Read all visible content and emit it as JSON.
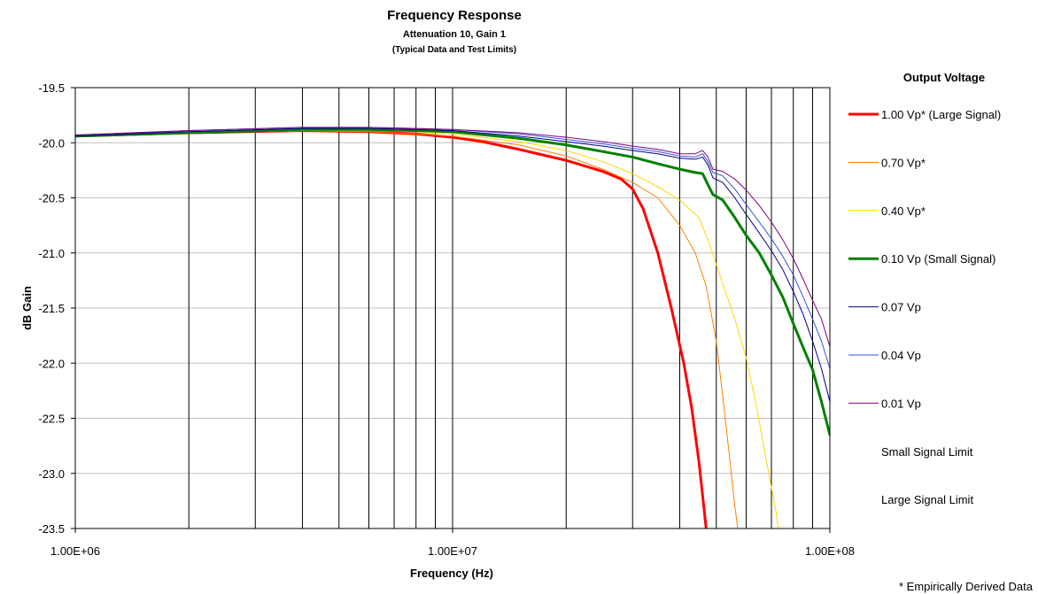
{
  "chart_data": {
    "type": "line",
    "title": "Frequency Response",
    "subtitle": "Attenuation 10, Gain 1",
    "subtitle2": "(Typical Data and Test Limits)",
    "xlabel": "Frequency (Hz)",
    "ylabel": "dB Gain",
    "x_scale": "log",
    "xlim": [
      1000000,
      100000000
    ],
    "ylim": [
      -23.5,
      -19.5
    ],
    "x_ticks": [
      {
        "value": 1000000,
        "label": "1.00E+06"
      },
      {
        "value": 10000000,
        "label": "1.00E+07"
      },
      {
        "value": 100000000,
        "label": "1.00E+08"
      }
    ],
    "y_ticks": [
      {
        "value": -19.5,
        "label": "-19.5"
      },
      {
        "value": -20.0,
        "label": "-20.0"
      },
      {
        "value": -20.5,
        "label": "-20.5"
      },
      {
        "value": -21.0,
        "label": "-21.0"
      },
      {
        "value": -21.5,
        "label": "-21.5"
      },
      {
        "value": -22.0,
        "label": "-22.0"
      },
      {
        "value": -22.5,
        "label": "-22.5"
      },
      {
        "value": -23.0,
        "label": "-23.0"
      },
      {
        "value": -23.5,
        "label": "-23.5"
      }
    ],
    "grid": {
      "x_minor_log": true,
      "y_major": true
    },
    "legend_title": "Output Voltage",
    "legend_position": "right",
    "footnote": "* Empirically Derived Data",
    "series": [
      {
        "name": "1.00 Vp* (Large Signal)",
        "color": "#ff0000",
        "width": 3,
        "points": [
          [
            1000000,
            -19.94
          ],
          [
            2000000,
            -19.91
          ],
          [
            4000000,
            -19.89
          ],
          [
            6000000,
            -19.9
          ],
          [
            8000000,
            -19.92
          ],
          [
            10000000,
            -19.95
          ],
          [
            12000000,
            -19.99
          ],
          [
            15000000,
            -20.06
          ],
          [
            20000000,
            -20.16
          ],
          [
            25000000,
            -20.26
          ],
          [
            28000000,
            -20.33
          ],
          [
            30000000,
            -20.42
          ],
          [
            32000000,
            -20.6
          ],
          [
            35000000,
            -21.0
          ],
          [
            38000000,
            -21.5
          ],
          [
            41000000,
            -22.0
          ],
          [
            43000000,
            -22.4
          ],
          [
            45000000,
            -22.9
          ],
          [
            47000000,
            -23.5
          ]
        ]
      },
      {
        "name": "0.70 Vp*",
        "color": "#ff8000",
        "width": 1,
        "points": [
          [
            1000000,
            -19.94
          ],
          [
            2000000,
            -19.91
          ],
          [
            4000000,
            -19.89
          ],
          [
            6000000,
            -19.9
          ],
          [
            8000000,
            -19.92
          ],
          [
            10000000,
            -19.94
          ],
          [
            15000000,
            -20.02
          ],
          [
            20000000,
            -20.12
          ],
          [
            25000000,
            -20.24
          ],
          [
            30000000,
            -20.36
          ],
          [
            35000000,
            -20.5
          ],
          [
            40000000,
            -20.75
          ],
          [
            44000000,
            -21.0
          ],
          [
            47000000,
            -21.3
          ],
          [
            50000000,
            -21.8
          ],
          [
            52000000,
            -22.3
          ],
          [
            54000000,
            -22.8
          ],
          [
            56000000,
            -23.3
          ],
          [
            57000000,
            -23.5
          ]
        ]
      },
      {
        "name": "0.40 Vp*",
        "color": "#ffd700",
        "width": 1,
        "points": [
          [
            1000000,
            -19.94
          ],
          [
            2000000,
            -19.91
          ],
          [
            4000000,
            -19.89
          ],
          [
            6000000,
            -19.89
          ],
          [
            8000000,
            -19.9
          ],
          [
            10000000,
            -19.92
          ],
          [
            15000000,
            -19.99
          ],
          [
            20000000,
            -20.07
          ],
          [
            25000000,
            -20.17
          ],
          [
            30000000,
            -20.28
          ],
          [
            35000000,
            -20.4
          ],
          [
            40000000,
            -20.52
          ],
          [
            45000000,
            -20.68
          ],
          [
            48000000,
            -20.92
          ],
          [
            52000000,
            -21.28
          ],
          [
            56000000,
            -21.6
          ],
          [
            60000000,
            -21.95
          ],
          [
            64000000,
            -22.4
          ],
          [
            68000000,
            -22.9
          ],
          [
            72000000,
            -23.35
          ],
          [
            73000000,
            -23.5
          ]
        ]
      },
      {
        "name": "0.10 Vp (Small Signal)",
        "color": "#008000",
        "width": 3,
        "points": [
          [
            1000000,
            -19.94
          ],
          [
            2000000,
            -19.91
          ],
          [
            4000000,
            -19.88
          ],
          [
            6000000,
            -19.88
          ],
          [
            8000000,
            -19.89
          ],
          [
            10000000,
            -19.9
          ],
          [
            15000000,
            -19.96
          ],
          [
            20000000,
            -20.02
          ],
          [
            25000000,
            -20.08
          ],
          [
            30000000,
            -20.13
          ],
          [
            35000000,
            -20.19
          ],
          [
            40000000,
            -20.24
          ],
          [
            44000000,
            -20.27
          ],
          [
            46000000,
            -20.28
          ],
          [
            47500000,
            -20.38
          ],
          [
            49000000,
            -20.47
          ],
          [
            52000000,
            -20.52
          ],
          [
            56000000,
            -20.68
          ],
          [
            60000000,
            -20.84
          ],
          [
            65000000,
            -21.0
          ],
          [
            70000000,
            -21.2
          ],
          [
            75000000,
            -21.4
          ],
          [
            80000000,
            -21.64
          ],
          [
            85000000,
            -21.86
          ],
          [
            90000000,
            -22.06
          ],
          [
            95000000,
            -22.35
          ],
          [
            100000000,
            -22.65
          ]
        ]
      },
      {
        "name": "0.07 Vp",
        "color": "#00008b",
        "width": 1,
        "points": [
          [
            1000000,
            -19.94
          ],
          [
            2000000,
            -19.9
          ],
          [
            4000000,
            -19.87
          ],
          [
            6000000,
            -19.87
          ],
          [
            8000000,
            -19.88
          ],
          [
            10000000,
            -19.89
          ],
          [
            15000000,
            -19.94
          ],
          [
            20000000,
            -19.99
          ],
          [
            25000000,
            -20.03
          ],
          [
            30000000,
            -20.07
          ],
          [
            35000000,
            -20.1
          ],
          [
            40000000,
            -20.14
          ],
          [
            44000000,
            -20.15
          ],
          [
            46000000,
            -20.13
          ],
          [
            47500000,
            -20.2
          ],
          [
            49000000,
            -20.32
          ],
          [
            52000000,
            -20.36
          ],
          [
            56000000,
            -20.5
          ],
          [
            60000000,
            -20.65
          ],
          [
            65000000,
            -20.82
          ],
          [
            70000000,
            -20.98
          ],
          [
            75000000,
            -21.15
          ],
          [
            80000000,
            -21.35
          ],
          [
            85000000,
            -21.56
          ],
          [
            90000000,
            -21.8
          ],
          [
            95000000,
            -22.05
          ],
          [
            100000000,
            -22.35
          ]
        ]
      },
      {
        "name": "0.04 Vp",
        "color": "#3355dd",
        "width": 1,
        "points": [
          [
            1000000,
            -19.93
          ],
          [
            2000000,
            -19.89
          ],
          [
            4000000,
            -19.86
          ],
          [
            6000000,
            -19.86
          ],
          [
            8000000,
            -19.87
          ],
          [
            10000000,
            -19.88
          ],
          [
            15000000,
            -19.92
          ],
          [
            20000000,
            -19.97
          ],
          [
            25000000,
            -20.01
          ],
          [
            30000000,
            -20.05
          ],
          [
            35000000,
            -20.08
          ],
          [
            40000000,
            -20.12
          ],
          [
            44000000,
            -20.13
          ],
          [
            46000000,
            -20.1
          ],
          [
            47500000,
            -20.17
          ],
          [
            49000000,
            -20.27
          ],
          [
            52000000,
            -20.3
          ],
          [
            56000000,
            -20.42
          ],
          [
            60000000,
            -20.56
          ],
          [
            65000000,
            -20.72
          ],
          [
            70000000,
            -20.87
          ],
          [
            75000000,
            -21.03
          ],
          [
            80000000,
            -21.2
          ],
          [
            85000000,
            -21.4
          ],
          [
            90000000,
            -21.6
          ],
          [
            95000000,
            -21.8
          ],
          [
            100000000,
            -22.05
          ]
        ]
      },
      {
        "name": "0.01 Vp",
        "color": "#800080",
        "width": 1,
        "points": [
          [
            1000000,
            -19.93
          ],
          [
            2000000,
            -19.89
          ],
          [
            4000000,
            -19.86
          ],
          [
            6000000,
            -19.86
          ],
          [
            8000000,
            -19.87
          ],
          [
            10000000,
            -19.88
          ],
          [
            15000000,
            -19.91
          ],
          [
            20000000,
            -19.95
          ],
          [
            25000000,
            -19.99
          ],
          [
            30000000,
            -20.03
          ],
          [
            35000000,
            -20.06
          ],
          [
            40000000,
            -20.1
          ],
          [
            44000000,
            -20.1
          ],
          [
            46000000,
            -20.07
          ],
          [
            47500000,
            -20.13
          ],
          [
            49000000,
            -20.24
          ],
          [
            52000000,
            -20.26
          ],
          [
            56000000,
            -20.33
          ],
          [
            60000000,
            -20.43
          ],
          [
            65000000,
            -20.57
          ],
          [
            70000000,
            -20.72
          ],
          [
            75000000,
            -20.88
          ],
          [
            80000000,
            -21.05
          ],
          [
            85000000,
            -21.24
          ],
          [
            90000000,
            -21.43
          ],
          [
            95000000,
            -21.6
          ],
          [
            100000000,
            -21.85
          ]
        ]
      },
      {
        "name": "Small Signal Limit",
        "color": "none",
        "width": 0,
        "points": []
      },
      {
        "name": "Large Signal Limit",
        "color": "none",
        "width": 0,
        "points": []
      }
    ]
  }
}
